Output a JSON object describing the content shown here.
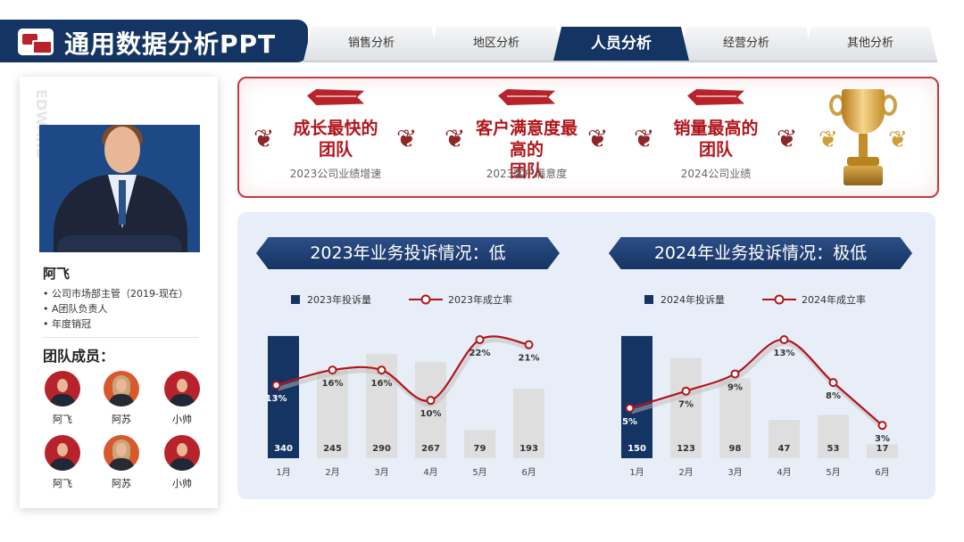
{
  "header": {
    "title": "通用数据分析PPT",
    "tabs": [
      {
        "label": "销售分析",
        "active": false
      },
      {
        "label": "地区分析",
        "active": false
      },
      {
        "label": "人员分析",
        "active": true
      },
      {
        "label": "经营分析",
        "active": false
      },
      {
        "label": "其他分析",
        "active": false
      }
    ]
  },
  "profile": {
    "watermark": "EDWARD",
    "name": "阿飞",
    "details": [
      "• 公司市场部主管（2019-现在）",
      "• A团队负责人",
      "• 年度销冠"
    ],
    "members_title": "团队成员：",
    "members": [
      {
        "name": "阿飞"
      },
      {
        "name": "阿苏"
      },
      {
        "name": "小帅"
      },
      {
        "name": "阿飞"
      },
      {
        "name": "阿苏"
      },
      {
        "name": "小帅"
      }
    ]
  },
  "honors": [
    {
      "title": "成长最快的团队",
      "subtitle": "2023公司业绩增速"
    },
    {
      "title": "客户满意度最高的团队",
      "subtitle": "2023客户满意度"
    },
    {
      "title": "销量最高的团队",
      "subtitle": "2024公司业绩"
    }
  ],
  "colors": {
    "navy": "#143463",
    "red": "#b1151b",
    "bar_grey": "#dedede",
    "panel": "#e8eef8"
  },
  "chart_data": [
    {
      "type": "bar",
      "title": "2023年业务投诉情况：低",
      "categories": [
        "1月",
        "2月",
        "3月",
        "4月",
        "5月",
        "6月"
      ],
      "highlight_index": 0,
      "series": [
        {
          "name": "2023年投诉量",
          "type": "bar",
          "values": [
            340,
            245,
            290,
            267,
            79,
            193
          ]
        },
        {
          "name": "2023年成立率",
          "type": "line",
          "values": [
            13,
            16,
            16,
            10,
            22,
            21
          ],
          "labels": [
            "13%",
            "16%",
            "16%",
            "10%",
            "22%",
            "21%"
          ]
        }
      ]
    },
    {
      "type": "bar",
      "title": "2024年业务投诉情况：极低",
      "categories": [
        "1月",
        "2月",
        "3月",
        "4月",
        "5月",
        "6月"
      ],
      "highlight_index": 0,
      "series": [
        {
          "name": "2024年投诉量",
          "type": "bar",
          "values": [
            150,
            123,
            98,
            47,
            53,
            17
          ]
        },
        {
          "name": "2024年成立率",
          "type": "line",
          "values": [
            5,
            7,
            9,
            13,
            8,
            3
          ],
          "labels": [
            "5%",
            "7%",
            "9%",
            "13%",
            "8%",
            "3%"
          ]
        }
      ]
    }
  ]
}
